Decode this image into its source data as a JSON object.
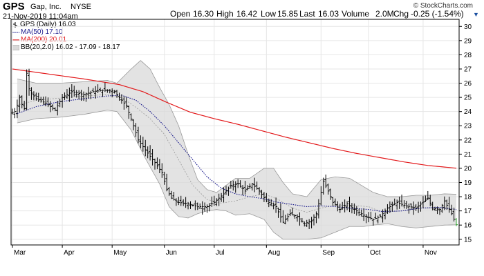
{
  "header": {
    "symbol": "GPS",
    "company": "Gap, Inc.",
    "exchange": "NYSE",
    "datetime": "21-Nov-2019 11:04am",
    "open_label": "Open",
    "open": "16.30",
    "high_label": "High",
    "high": "16.42",
    "low_label": "Low",
    "low": "15.85",
    "last_label": "Last",
    "last": "16.03",
    "volume_label": "Volume",
    "volume": "2.0M",
    "chg_label": "Chg",
    "chg": "-0.25 (-1.54%)",
    "copyright": "© StockCharts.com"
  },
  "legend": {
    "price": "GPS (Daily) 16.03",
    "ma50": "MA(50) 17.10",
    "ma200": "MA(200) 20.01",
    "bb": "BB(20,2.0) 16.02 - 17.09 - 18.17"
  },
  "colors": {
    "price": "#000000",
    "ma50": "#1a1a8c",
    "ma200": "#e31a1c",
    "bb_fill": "#d9d9d9",
    "bb_line": "#9a9a9a",
    "bb_mid": "#9a9a9a",
    "grid": "#e6e6e6",
    "last_point": "#2ca02c",
    "chg_arrow": "#1a4fa0"
  },
  "chart_data": {
    "type": "ohlc",
    "title": "GPS Gap, Inc. NYSE",
    "period": "Daily",
    "x_months": [
      "Mar",
      "Apr",
      "May",
      "Jun",
      "Jul",
      "Aug",
      "Sep",
      "Oct",
      "Nov"
    ],
    "month_start_day": [
      0,
      21,
      42,
      64,
      85,
      107,
      130,
      150,
      173
    ],
    "total_days": 188,
    "y_axis": {
      "side": "right",
      "ticks": [
        15,
        16,
        17,
        18,
        19,
        20,
        21,
        22,
        23,
        24,
        25,
        26,
        27,
        28,
        29,
        30
      ],
      "ylim": [
        14.6,
        30.5
      ]
    },
    "grid": true,
    "legend_position": "top-left",
    "series_names": [
      "GPS (Daily)",
      "MA(50)",
      "MA(200)",
      "BB(20,2.0)"
    ],
    "price_anchors": [
      [
        0,
        23.9
      ],
      [
        1,
        24.0
      ],
      [
        2,
        24.4
      ],
      [
        3,
        25.0
      ],
      [
        4,
        24.5
      ],
      [
        5,
        24.2
      ],
      [
        6,
        26.7
      ],
      [
        7,
        25.6
      ],
      [
        8,
        25.3
      ],
      [
        10,
        24.9
      ],
      [
        14,
        24.6
      ],
      [
        18,
        24.1
      ],
      [
        21,
        25.0
      ],
      [
        25,
        25.4
      ],
      [
        30,
        25.2
      ],
      [
        34,
        25.4
      ],
      [
        38,
        25.5
      ],
      [
        41,
        25.5
      ],
      [
        43,
        25.4
      ],
      [
        46,
        24.8
      ],
      [
        48,
        24.4
      ],
      [
        51,
        23.0
      ],
      [
        53,
        22.0
      ],
      [
        56,
        21.3
      ],
      [
        60,
        20.4
      ],
      [
        63,
        19.7
      ],
      [
        65,
        18.5
      ],
      [
        67,
        17.9
      ],
      [
        70,
        17.6
      ],
      [
        74,
        17.5
      ],
      [
        78,
        17.3
      ],
      [
        82,
        17.3
      ],
      [
        85,
        17.6
      ],
      [
        89,
        18.2
      ],
      [
        92,
        18.8
      ],
      [
        95,
        18.9
      ],
      [
        98,
        18.4
      ],
      [
        101,
        18.9
      ],
      [
        104,
        18.4
      ],
      [
        107,
        17.7
      ],
      [
        111,
        17.3
      ],
      [
        114,
        16.2
      ],
      [
        117,
        16.8
      ],
      [
        120,
        16.6
      ],
      [
        123,
        16.1
      ],
      [
        126,
        16.3
      ],
      [
        128,
        16.8
      ],
      [
        129,
        17.5
      ],
      [
        131,
        19.1
      ],
      [
        133,
        18.4
      ],
      [
        135,
        17.6
      ],
      [
        138,
        17.1
      ],
      [
        141,
        17.5
      ],
      [
        144,
        17.1
      ],
      [
        148,
        16.7
      ],
      [
        152,
        16.4
      ],
      [
        155,
        16.6
      ],
      [
        158,
        17.2
      ],
      [
        162,
        17.6
      ],
      [
        165,
        17.4
      ],
      [
        170,
        17.2
      ],
      [
        175,
        17.9
      ],
      [
        177,
        17.2
      ],
      [
        180,
        17.1
      ],
      [
        182,
        17.7
      ],
      [
        185,
        16.8
      ],
      [
        187,
        16.03
      ]
    ],
    "ma50_anchors": [
      [
        2,
        23.85
      ],
      [
        10,
        24.35
      ],
      [
        20,
        24.7
      ],
      [
        30,
        24.9
      ],
      [
        40,
        25.1
      ],
      [
        46,
        25.15
      ],
      [
        52,
        24.8
      ],
      [
        58,
        24.0
      ],
      [
        64,
        23.0
      ],
      [
        70,
        21.8
      ],
      [
        76,
        20.6
      ],
      [
        82,
        19.4
      ],
      [
        88,
        18.6
      ],
      [
        94,
        18.2
      ],
      [
        100,
        18.0
      ],
      [
        106,
        17.85
      ],
      [
        112,
        17.6
      ],
      [
        118,
        17.45
      ],
      [
        124,
        17.3
      ],
      [
        130,
        17.35
      ],
      [
        136,
        17.3
      ],
      [
        142,
        17.2
      ],
      [
        150,
        17.1
      ],
      [
        156,
        16.95
      ],
      [
        164,
        17.0
      ],
      [
        172,
        17.2
      ],
      [
        180,
        17.25
      ],
      [
        187,
        17.1
      ]
    ],
    "ma200_anchors": [
      [
        0,
        27.0
      ],
      [
        15,
        26.65
      ],
      [
        30,
        26.3
      ],
      [
        45,
        25.9
      ],
      [
        55,
        25.4
      ],
      [
        65,
        24.65
      ],
      [
        75,
        23.95
      ],
      [
        85,
        23.5
      ],
      [
        95,
        23.1
      ],
      [
        105,
        22.65
      ],
      [
        115,
        22.2
      ],
      [
        125,
        21.8
      ],
      [
        135,
        21.4
      ],
      [
        145,
        21.05
      ],
      [
        155,
        20.75
      ],
      [
        165,
        20.45
      ],
      [
        175,
        20.2
      ],
      [
        187,
        20.01
      ]
    ],
    "bb_mid_anchors": [
      [
        2,
        24.45
      ],
      [
        10,
        24.8
      ],
      [
        20,
        24.95
      ],
      [
        30,
        25.1
      ],
      [
        40,
        25.2
      ],
      [
        46,
        25.0
      ],
      [
        52,
        24.3
      ],
      [
        58,
        23.5
      ],
      [
        64,
        22.4
      ],
      [
        70,
        20.6
      ],
      [
        76,
        18.8
      ],
      [
        82,
        17.8
      ],
      [
        88,
        17.55
      ],
      [
        94,
        17.7
      ],
      [
        100,
        18.0
      ],
      [
        106,
        18.2
      ],
      [
        112,
        17.8
      ],
      [
        118,
        17.2
      ],
      [
        124,
        16.9
      ],
      [
        130,
        17.2
      ],
      [
        136,
        17.4
      ],
      [
        142,
        17.4
      ],
      [
        150,
        17.3
      ],
      [
        156,
        16.9
      ],
      [
        164,
        17.0
      ],
      [
        172,
        17.2
      ],
      [
        180,
        17.2
      ],
      [
        187,
        17.09
      ]
    ],
    "bb_upper_anchors": [
      [
        2,
        26.3
      ],
      [
        10,
        26.0
      ],
      [
        20,
        26.0
      ],
      [
        30,
        26.1
      ],
      [
        40,
        26.2
      ],
      [
        44,
        26.0
      ],
      [
        50,
        27.0
      ],
      [
        54,
        27.6
      ],
      [
        58,
        27.0
      ],
      [
        62,
        25.7
      ],
      [
        66,
        24.5
      ],
      [
        70,
        23.0
      ],
      [
        74,
        21.0
      ],
      [
        78,
        19.2
      ],
      [
        82,
        18.5
      ],
      [
        86,
        18.3
      ],
      [
        90,
        18.8
      ],
      [
        94,
        19.3
      ],
      [
        100,
        19.3
      ],
      [
        106,
        20.0
      ],
      [
        110,
        20.0
      ],
      [
        114,
        19.0
      ],
      [
        118,
        18.2
      ],
      [
        124,
        18.0
      ],
      [
        130,
        19.2
      ],
      [
        136,
        19.4
      ],
      [
        142,
        19.3
      ],
      [
        148,
        18.7
      ],
      [
        152,
        18.3
      ],
      [
        158,
        18.0
      ],
      [
        164,
        18.0
      ],
      [
        170,
        18.1
      ],
      [
        176,
        18.1
      ],
      [
        182,
        18.2
      ],
      [
        187,
        18.17
      ]
    ],
    "bb_lower_anchors": [
      [
        2,
        23.2
      ],
      [
        10,
        23.5
      ],
      [
        20,
        23.6
      ],
      [
        30,
        23.8
      ],
      [
        40,
        24.1
      ],
      [
        44,
        24.0
      ],
      [
        50,
        22.7
      ],
      [
        56,
        20.7
      ],
      [
        62,
        18.9
      ],
      [
        66,
        17.3
      ],
      [
        70,
        16.6
      ],
      [
        74,
        16.5
      ],
      [
        78,
        16.8
      ],
      [
        82,
        17.0
      ],
      [
        86,
        17.1
      ],
      [
        90,
        17.0
      ],
      [
        94,
        16.7
      ],
      [
        100,
        16.8
      ],
      [
        106,
        16.4
      ],
      [
        110,
        15.5
      ],
      [
        114,
        15.0
      ],
      [
        118,
        15.0
      ],
      [
        124,
        15.0
      ],
      [
        130,
        15.1
      ],
      [
        136,
        15.5
      ],
      [
        142,
        15.9
      ],
      [
        148,
        15.9
      ],
      [
        152,
        16.0
      ],
      [
        158,
        16.1
      ],
      [
        164,
        15.9
      ],
      [
        170,
        15.8
      ],
      [
        176,
        15.9
      ],
      [
        182,
        16.0
      ],
      [
        187,
        16.02
      ]
    ],
    "last_value": 16.03
  }
}
